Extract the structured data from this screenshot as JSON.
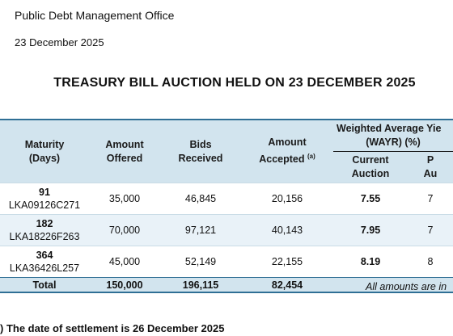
{
  "header": {
    "org": "Public Debt Management Office",
    "date": "23 December 2025",
    "title": "TREASURY BILL AUCTION HELD ON 23 DECEMBER 2025"
  },
  "table": {
    "headers": {
      "maturity_line1": "Maturity",
      "maturity_line2": "(Days)",
      "offered_line1": "Amount",
      "offered_line2": "Offered",
      "bids_line1": "Bids",
      "bids_line2": "Received",
      "accepted_line1": "Amount",
      "accepted_line2": "Accepted",
      "accepted_note": "(a)",
      "wayr_line1": "Weighted Average Yie",
      "wayr_line2": "(WAYR) (%)",
      "current_line1": "Current",
      "current_line2": "Auction",
      "previous_line1": "P",
      "previous_line2": "Au"
    },
    "rows": [
      {
        "days": "91",
        "isin": "LKA09126C271",
        "offered": "35,000",
        "bids": "46,845",
        "accepted": "20,156",
        "current": "7.55",
        "previous": "7"
      },
      {
        "days": "182",
        "isin": "LKA18226F263",
        "offered": "70,000",
        "bids": "97,121",
        "accepted": "40,143",
        "current": "7.95",
        "previous": "7"
      },
      {
        "days": "364",
        "isin": "LKA36426L257",
        "offered": "45,000",
        "bids": "52,149",
        "accepted": "22,155",
        "current": "8.19",
        "previous": "8"
      }
    ],
    "total": {
      "label": "Total",
      "offered": "150,000",
      "bids": "196,115",
      "accepted": "82,454"
    }
  },
  "notes": {
    "amounts": "All amounts are in",
    "settlement": ") The date of settlement is 26 December 2025"
  }
}
